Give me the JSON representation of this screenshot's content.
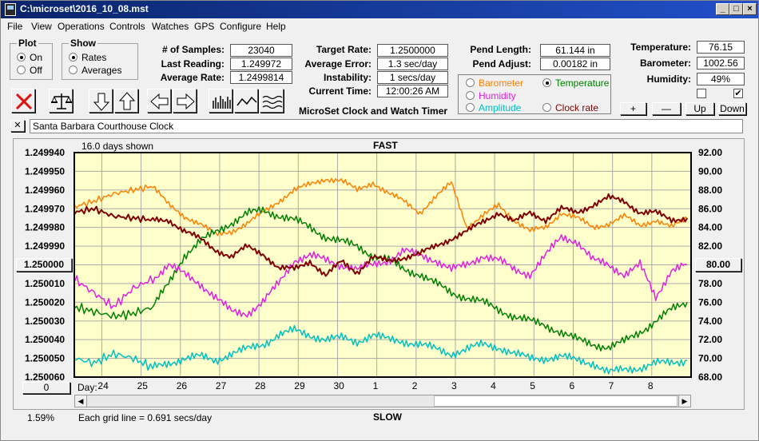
{
  "window": {
    "title": "C:\\microset\\2016_10_08.mst"
  },
  "menu": [
    "File",
    "View",
    "Operations",
    "Controls",
    "Watches",
    "GPS",
    "Configure",
    "Help"
  ],
  "plot_group": {
    "label": "Plot",
    "on": "On",
    "off": "Off",
    "selected": "On"
  },
  "show_group": {
    "label": "Show",
    "rates": "Rates",
    "averages": "Averages",
    "selected": "Rates"
  },
  "stats": {
    "samples_label": "# of Samples:",
    "samples": "23040",
    "last_label": "Last Reading:",
    "last": "1.249972",
    "avg_rate_label": "Average Rate:",
    "avg_rate": "1.2499814",
    "target_label": "Target Rate:",
    "target": "1.2500000",
    "avg_err_label": "Average Error:",
    "avg_err": "1.3 sec/day",
    "instab_label": "Instability:",
    "instab": "1 secs/day",
    "time_label": "Current Time:",
    "time": "12:00:26 AM",
    "pend_len_label": "Pend Length:",
    "pend_len": "61.144 in",
    "pend_adj_label": "Pend Adjust:",
    "pend_adj": "0.00182 in",
    "temp_label": "Temperature:",
    "temp": "76.15",
    "baro_label": "Barometer:",
    "baro": "1002.56",
    "hum_label": "Humidity:",
    "hum": "49%"
  },
  "app_title": "MicroSet Clock and Watch Timer",
  "sensor_options": {
    "barometer": "Barometer",
    "temperature": "Temperature",
    "humidity": "Humidity",
    "amplitude": "Amplitude",
    "clock_rate": "Clock rate",
    "selected": "Temperature",
    "colors": {
      "barometer": "#ff8000",
      "temperature": "#008000",
      "humidity": "#e020e0",
      "amplitude": "#00c0c0",
      "clock_rate": "#800000"
    }
  },
  "scale_buttons": {
    "plus": "+",
    "minus": "—",
    "up": "Up",
    "down": "Down"
  },
  "checkboxes": [
    {
      "checked": false
    },
    {
      "checked": true
    }
  ],
  "clock_name": "Santa Barbara Courthouse Clock",
  "close_x": "✕",
  "toolbar_icons": [
    "reset-x-icon",
    "balance-scale-icon",
    "arrow-down-icon",
    "arrow-up-icon",
    "arrow-left-icon",
    "arrow-right-icon",
    "bar-graph-icon",
    "line-graph-icon",
    "wave-graph-icon"
  ],
  "left_buttons": {
    "center": "1.250000",
    "zero": "0"
  },
  "right_button": "80.00",
  "bottom": {
    "pct": "1.59%",
    "grid_note": "Each grid line = 0.691 secs/day",
    "slow": "SLOW"
  },
  "chart_data": {
    "type": "line",
    "top_label": "FAST",
    "days_shown": "16.0 days shown",
    "x_axis_prefix": "Day:",
    "x_ticks": [
      "24",
      "25",
      "26",
      "27",
      "28",
      "29",
      "30",
      "1",
      "2",
      "3",
      "4",
      "5",
      "6",
      "7",
      "8"
    ],
    "y_left_ticks": [
      "1.249940",
      "1.249950",
      "1.249960",
      "1.249970",
      "1.249980",
      "1.249990",
      "1.250000",
      "1.250010",
      "1.250020",
      "1.250030",
      "1.250040",
      "1.250050",
      "1.250060"
    ],
    "y_left_range": [
      1.24994,
      1.25006
    ],
    "y_left_inverted": true,
    "y_right_ticks": [
      "92.00",
      "90.00",
      "88.00",
      "86.00",
      "84.00",
      "82.00",
      "80.00",
      "78.00",
      "76.00",
      "74.00",
      "72.00",
      "70.00",
      "68.00"
    ],
    "y_right_range": [
      68,
      92
    ],
    "grid": true,
    "x_range": [
      23.3,
      39
    ],
    "series": [
      {
        "name": "Barometer",
        "color": "#ff8000",
        "axis": "left",
        "x": [
          23.3,
          23.8,
          24.3,
          24.8,
          25.3,
          25.7,
          26.1,
          26.5,
          26.9,
          27.3,
          27.7,
          28.1,
          28.5,
          28.9,
          29.3,
          29.7,
          30.1,
          30.5,
          30.9,
          31.3,
          31.7,
          32.1,
          32.5,
          32.9,
          33.3,
          33.7,
          34.1,
          34.5,
          34.9,
          35.3,
          35.7,
          36.1,
          36.5,
          36.9,
          37.3,
          37.7,
          38.1,
          38.5,
          38.9
        ],
        "y": [
          1.249969,
          1.249966,
          1.249962,
          1.24996,
          1.249958,
          1.249968,
          1.249974,
          1.249978,
          1.249984,
          1.249982,
          1.249978,
          1.249972,
          1.249966,
          1.24996,
          1.249957,
          1.249954,
          1.249955,
          1.24996,
          1.249956,
          1.249962,
          1.249966,
          1.249972,
          1.249964,
          1.249956,
          1.24998,
          1.249974,
          1.249968,
          1.249976,
          1.249982,
          1.24998,
          1.249972,
          1.249975,
          1.24998,
          1.249978,
          1.249974,
          1.249979,
          1.249976,
          1.24998,
          1.249975
        ]
      },
      {
        "name": "Temperature",
        "color": "#008000",
        "axis": "right",
        "x": [
          23.3,
          23.8,
          24.3,
          24.8,
          25.3,
          25.7,
          26.1,
          26.5,
          26.9,
          27.3,
          27.7,
          28.1,
          28.5,
          28.9,
          29.3,
          29.7,
          30.1,
          30.5,
          30.9,
          31.3,
          31.7,
          32.1,
          32.5,
          32.9,
          33.3,
          33.7,
          34.1,
          34.5,
          34.9,
          35.3,
          35.7,
          36.1,
          36.5,
          36.9,
          37.3,
          37.7,
          38.1,
          38.5,
          38.9
        ],
        "y": [
          75.5,
          75.0,
          74.5,
          74.8,
          75.5,
          78.0,
          81.0,
          82.5,
          83.5,
          84.5,
          85.5,
          85.8,
          85.3,
          84.8,
          84.0,
          83.0,
          82.5,
          82.0,
          81.0,
          80.5,
          79.5,
          79.0,
          78.0,
          77.0,
          76.5,
          76.0,
          75.2,
          74.5,
          74.0,
          73.5,
          72.8,
          72.0,
          71.5,
          71.2,
          71.8,
          72.8,
          74.0,
          75.2,
          76.0
        ]
      },
      {
        "name": "Humidity",
        "color": "#e020e0",
        "axis": "right",
        "x": [
          23.3,
          23.8,
          24.3,
          24.8,
          25.3,
          25.7,
          26.1,
          26.5,
          26.9,
          27.3,
          27.7,
          28.1,
          28.5,
          28.9,
          29.3,
          29.7,
          30.1,
          30.5,
          30.9,
          31.3,
          31.7,
          32.1,
          32.5,
          32.9,
          33.3,
          33.7,
          34.1,
          34.5,
          34.9,
          35.3,
          35.7,
          36.1,
          36.5,
          36.9,
          37.3,
          37.7,
          38.1,
          38.5,
          38.9
        ],
        "y": [
          78.5,
          77.0,
          75.5,
          77.5,
          78.5,
          80.0,
          79.0,
          78.0,
          76.5,
          75.0,
          74.8,
          76.0,
          78.0,
          80.5,
          81.0,
          80.5,
          80.0,
          79.5,
          80.0,
          80.5,
          81.5,
          81.0,
          80.5,
          79.5,
          80.0,
          81.0,
          80.5,
          79.5,
          79.0,
          81.0,
          83.0,
          82.5,
          80.5,
          80.0,
          79.0,
          80.0,
          76.5,
          79.5,
          80.0
        ]
      },
      {
        "name": "Amplitude",
        "color": "#00c0c0",
        "axis": "right",
        "x": [
          23.3,
          23.8,
          24.3,
          24.8,
          25.3,
          25.7,
          26.1,
          26.5,
          26.9,
          27.3,
          27.7,
          28.1,
          28.5,
          28.9,
          29.3,
          29.7,
          30.1,
          30.5,
          30.9,
          31.3,
          31.7,
          32.1,
          32.5,
          32.9,
          33.3,
          33.7,
          34.1,
          34.5,
          34.9,
          35.3,
          35.7,
          36.1,
          36.5,
          36.9,
          37.3,
          37.7,
          38.1,
          38.5,
          38.9
        ],
        "y": [
          70.0,
          69.5,
          70.5,
          70.0,
          69.0,
          69.5,
          70.0,
          70.2,
          69.8,
          70.5,
          71.0,
          71.5,
          72.5,
          73.0,
          72.5,
          72.0,
          72.2,
          71.8,
          72.5,
          72.0,
          71.8,
          71.5,
          71.0,
          70.5,
          71.0,
          71.5,
          71.2,
          70.5,
          70.0,
          70.0,
          70.2,
          69.8,
          69.5,
          68.5,
          68.8,
          69.0,
          69.5,
          69.5,
          69.8
        ]
      },
      {
        "name": "Clock rate",
        "color": "#800000",
        "axis": "left",
        "x": [
          23.3,
          23.8,
          24.3,
          24.8,
          25.3,
          25.7,
          26.1,
          26.5,
          26.9,
          27.3,
          27.7,
          28.1,
          28.5,
          28.9,
          29.3,
          29.7,
          30.1,
          30.5,
          30.9,
          31.3,
          31.7,
          32.1,
          32.5,
          32.9,
          33.3,
          33.7,
          34.1,
          34.5,
          34.9,
          35.3,
          35.7,
          36.1,
          36.5,
          36.9,
          37.3,
          37.7,
          38.1,
          38.5,
          38.9
        ],
        "y": [
          1.249972,
          1.24997,
          1.249974,
          1.249975,
          1.249976,
          1.249976,
          1.249982,
          1.249986,
          1.249992,
          1.249996,
          1.24999,
          1.249994,
          1.250002,
          1.250002,
          1.249998,
          1.250006,
          1.249998,
          1.250004,
          1.249996,
          1.249998,
          1.249996,
          1.249994,
          1.24999,
          1.249986,
          1.249982,
          1.249977,
          1.249972,
          1.249977,
          1.249972,
          1.249976,
          1.24997,
          1.249972,
          1.249968,
          1.249964,
          1.249966,
          1.249972,
          1.249972,
          1.249976,
          1.249975
        ]
      }
    ]
  }
}
